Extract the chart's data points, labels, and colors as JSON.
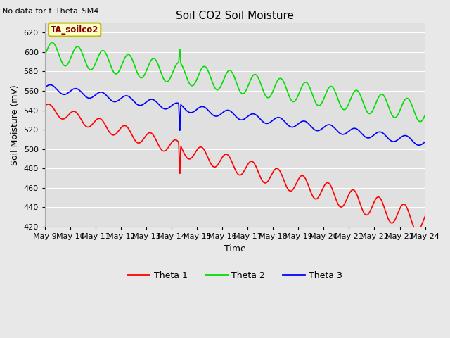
{
  "title": "Soil CO2 Soil Moisture",
  "note": "No data for f_Theta_SM4",
  "xlabel": "Time",
  "ylabel": "Soil Moisture (mV)",
  "ylim": [
    420,
    630
  ],
  "xlim": [
    0,
    15
  ],
  "fig_facecolor": "#e8e8e8",
  "ax_facecolor": "#e0e0e0",
  "tick_labels": [
    "May 9",
    "May 10",
    "May 11",
    "May 12",
    "May 13",
    "May 14",
    "May 15",
    "May 16",
    "May 17",
    "May 18",
    "May 19",
    "May 20",
    "May 21",
    "May 22",
    "May 23",
    "May 24"
  ],
  "annotation_box": "TA_soilco2",
  "legend": [
    "Theta 1",
    "Theta 2",
    "Theta 3"
  ],
  "line_colors": [
    "#ff0000",
    "#00dd00",
    "#0000ff"
  ],
  "line_width": 1.2
}
